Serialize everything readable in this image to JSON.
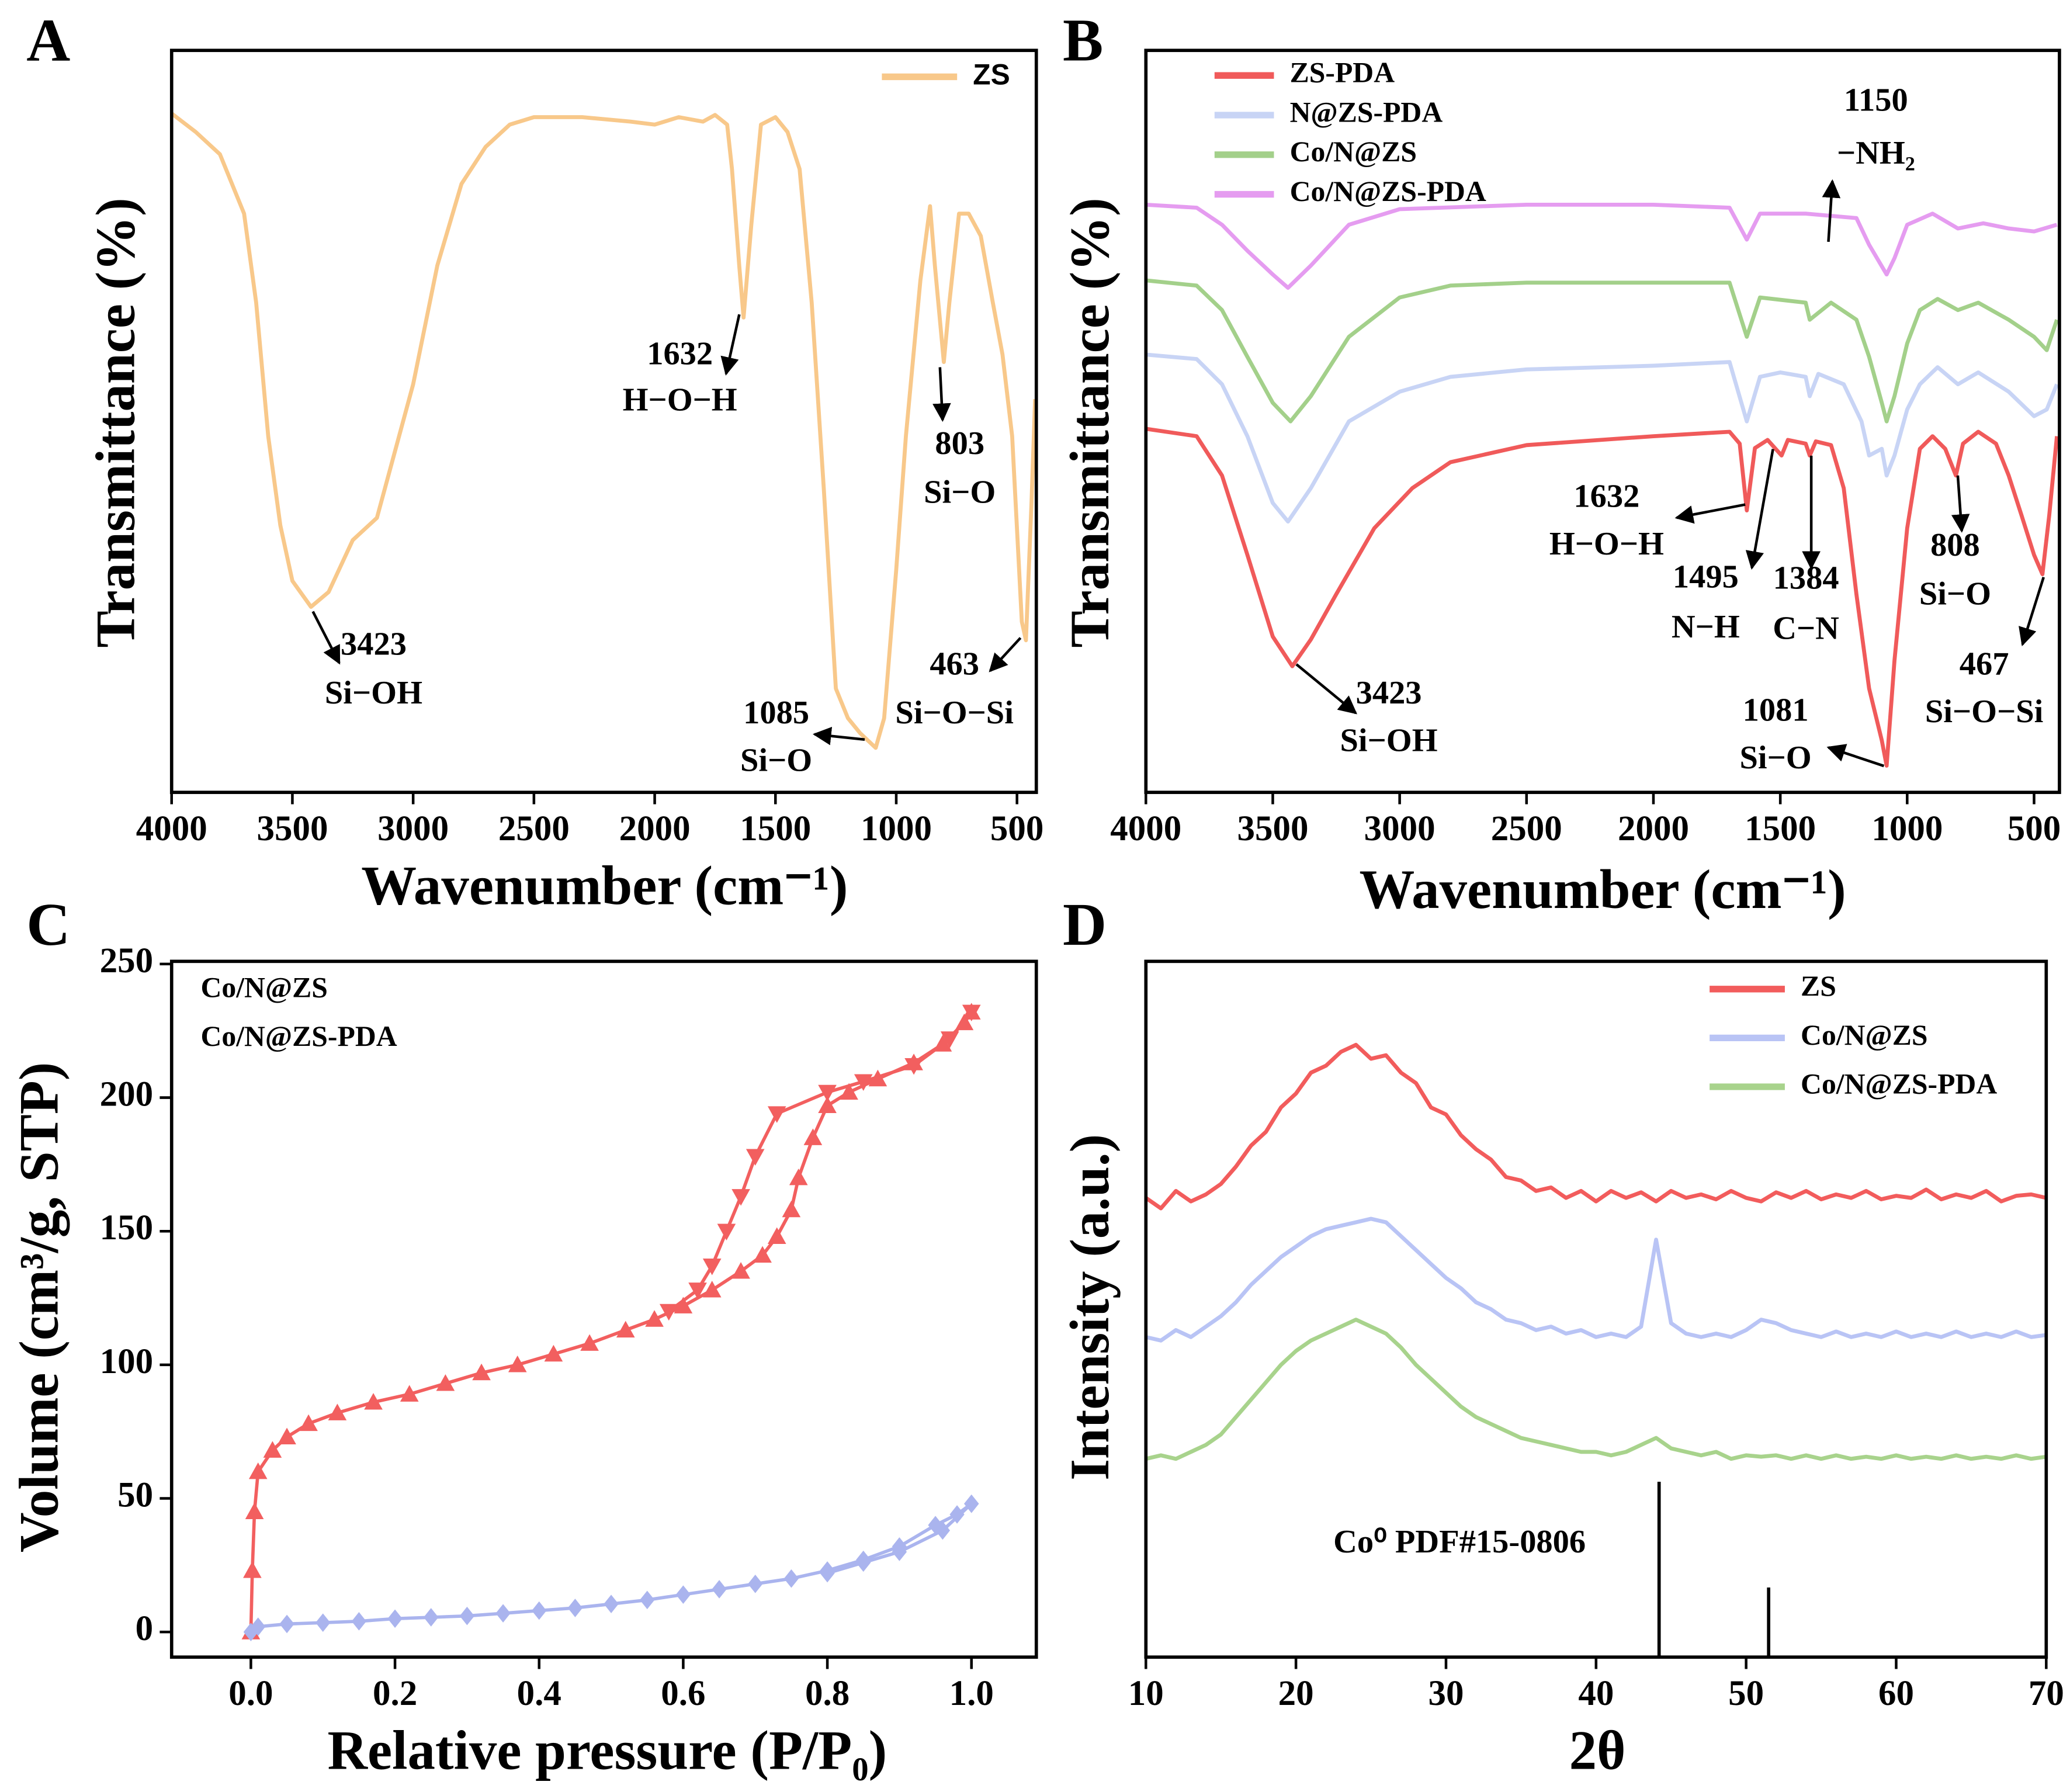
{
  "chart_data": [
    {
      "type": "line",
      "panel": "A",
      "xlabel": "Wavenumber (cm⁻¹)",
      "ylabel": "Transmittance (%)",
      "xlim": [
        4000,
        420
      ],
      "ylim": [
        0,
        100
      ],
      "xticks": [
        4000,
        3500,
        3000,
        2500,
        2000,
        1500,
        1000,
        500
      ],
      "legend": "upper right",
      "legend_lines": true,
      "series": [
        {
          "name": "ZS",
          "color": "#f8c88a",
          "x": [
            4000,
            3900,
            3800,
            3700,
            3650,
            3600,
            3550,
            3500,
            3423,
            3350,
            3250,
            3150,
            3000,
            2900,
            2800,
            2700,
            2600,
            2500,
            2300,
            2100,
            2000,
            1900,
            1800,
            1750,
            1700,
            1680,
            1650,
            1632,
            1600,
            1560,
            1500,
            1450,
            1400,
            1350,
            1300,
            1250,
            1200,
            1150,
            1085,
            1050,
            1000,
            960,
            900,
            860,
            840,
            803,
            780,
            740,
            700,
            650,
            600,
            560,
            520,
            480,
            463,
            440,
            425
          ],
          "values": [
            91.5,
            89,
            86,
            78,
            66,
            48,
            36,
            28.5,
            25,
            27,
            34,
            37,
            55,
            71,
            82,
            87,
            90,
            91,
            91,
            90.4,
            90,
            91,
            90.4,
            91.3,
            90,
            84,
            71,
            64,
            76.5,
            90,
            91,
            89,
            84,
            66,
            41,
            14,
            10,
            8,
            6,
            10,
            30,
            48,
            69,
            79,
            71,
            58,
            66,
            78,
            78,
            75,
            66,
            59,
            48,
            23,
            20.5,
            39,
            53
          ]
        }
      ],
      "annotations": [
        {
          "label": "3423",
          "text": "Si−OH"
        },
        {
          "label": "1632",
          "text": "H−O−H"
        },
        {
          "label": "803",
          "text": "Si−O"
        },
        {
          "label": "1085",
          "text": "Si−O"
        },
        {
          "label": "463",
          "text": "Si−O−Si"
        }
      ]
    },
    {
      "type": "line",
      "panel": "B",
      "xlabel": "Wavenumber (cm⁻¹)",
      "ylabel": "Transmittance (%)",
      "xlim": [
        4000,
        400
      ],
      "ylim": [
        0,
        100
      ],
      "xticks": [
        4000,
        3500,
        3000,
        2500,
        2000,
        1500,
        1000,
        500
      ],
      "legend": "upper left",
      "legend_lines": true,
      "series": [
        {
          "name": "ZS-PDA",
          "color": "#f05a5a",
          "x": [
            4000,
            3800,
            3700,
            3600,
            3500,
            3423,
            3350,
            3250,
            3100,
            2950,
            2800,
            2500,
            2000,
            1700,
            1660,
            1632,
            1600,
            1550,
            1495,
            1470,
            1400,
            1384,
            1360,
            1300,
            1250,
            1200,
            1150,
            1100,
            1081,
            1050,
            1000,
            950,
            900,
            850,
            808,
            780,
            720,
            650,
            600,
            550,
            500,
            467,
            440,
            410
          ],
          "values": [
            49,
            48,
            42.7,
            32,
            21,
            17,
            20.6,
            26.7,
            35.6,
            41,
            44.5,
            46.8,
            48,
            48.6,
            47,
            38,
            46.4,
            47.5,
            45.4,
            47.5,
            47,
            45.4,
            47.3,
            46.8,
            41,
            26.7,
            14,
            7,
            3.6,
            17.8,
            35.6,
            46.3,
            48,
            46.3,
            42.7,
            47,
            48.6,
            47,
            42.7,
            37.4,
            32,
            29.4,
            37.4,
            48
          ]
        },
        {
          "name": "N@ZS-PDA",
          "color": "#c8d4f5",
          "x": [
            4000,
            3800,
            3700,
            3600,
            3500,
            3440,
            3350,
            3200,
            3000,
            2800,
            2500,
            2000,
            1700,
            1632,
            1580,
            1500,
            1400,
            1384,
            1350,
            1250,
            1180,
            1150,
            1100,
            1081,
            1050,
            1000,
            950,
            880,
            800,
            720,
            600,
            500,
            450,
            410
          ],
          "values": [
            59,
            58.4,
            55,
            48,
            39,
            36.5,
            41,
            50,
            54,
            56,
            57,
            57.5,
            58,
            50,
            56,
            56.6,
            56,
            53.4,
            56.4,
            55,
            50,
            45.4,
            46.3,
            42.7,
            45.4,
            51.6,
            55,
            57.3,
            55,
            56.6,
            54,
            50.7,
            51.6,
            55
          ]
        },
        {
          "name": "Co/N@ZS",
          "color": "#a3d08a",
          "x": [
            4000,
            3800,
            3700,
            3600,
            3500,
            3430,
            3350,
            3200,
            3000,
            2800,
            2500,
            2000,
            1700,
            1632,
            1580,
            1400,
            1384,
            1300,
            1200,
            1150,
            1100,
            1081,
            1050,
            1000,
            950,
            880,
            800,
            720,
            600,
            500,
            450,
            410
          ],
          "values": [
            69,
            68.3,
            65,
            58.7,
            52.5,
            50,
            53.4,
            61.4,
            66.7,
            68.3,
            68.7,
            68.7,
            68.7,
            61.4,
            66.7,
            66,
            63.7,
            66,
            63.7,
            58.7,
            52.5,
            50,
            53.4,
            60.5,
            65,
            66.5,
            65,
            66,
            63.7,
            61.4,
            59.6,
            63.7
          ]
        },
        {
          "name": "Co/N@ZS-PDA",
          "color": "#e59cf0",
          "x": [
            4000,
            3800,
            3700,
            3600,
            3500,
            3440,
            3350,
            3200,
            3000,
            2500,
            2000,
            1700,
            1632,
            1580,
            1400,
            1200,
            1150,
            1081,
            1050,
            1000,
            900,
            800,
            700,
            600,
            500,
            410
          ],
          "values": [
            79.2,
            78.8,
            76.5,
            73,
            69.8,
            68,
            71,
            76.5,
            78.6,
            79.2,
            79.2,
            78.8,
            74.5,
            78,
            78,
            77.4,
            73.8,
            69.8,
            72,
            76.5,
            78,
            76,
            76.7,
            76,
            75.6,
            76.5
          ]
        }
      ],
      "annotations": [
        {
          "label": "1150",
          "text": "−NH₂"
        },
        {
          "label": "1632",
          "text": "H−O−H"
        },
        {
          "label": "1495",
          "text": "N−H"
        },
        {
          "label": "1384",
          "text": "C−N"
        },
        {
          "label": "808",
          "text": "Si−O"
        },
        {
          "label": "467",
          "text": "Si−O−Si"
        },
        {
          "label": "3423",
          "text": "Si−OH"
        },
        {
          "label": "1081",
          "text": "Si−O"
        }
      ]
    },
    {
      "type": "line",
      "panel": "C",
      "xlabel": "Relative pressure (P/P₀)",
      "ylabel": "Volume (cm³/g, STP)",
      "xlim": [
        -0.11,
        1.09
      ],
      "ylim": [
        -9.4,
        251
      ],
      "xticks": [
        {
          "value": 0,
          "label": "0.0"
        },
        {
          "value": 0.2,
          "label": "0.2"
        },
        {
          "value": 0.4,
          "label": "0.4"
        },
        {
          "value": 0.6,
          "label": "0.6"
        },
        {
          "value": 0.8,
          "label": "0.8"
        },
        {
          "value": 1,
          "label": "1.0"
        }
      ],
      "yticks": [
        0,
        50,
        100,
        150,
        200,
        250
      ],
      "legend": "upper left",
      "legend_lines": false,
      "series": [
        {
          "name": "Co/N@ZS",
          "color": "#f25f5f",
          "marker": "triangle",
          "x": [
            0,
            0.002,
            0.005,
            0.01,
            0.03,
            0.05,
            0.08,
            0.12,
            0.17,
            0.22,
            0.27,
            0.32,
            0.37,
            0.42,
            0.47,
            0.52,
            0.56,
            0.6,
            0.64,
            0.68,
            0.71,
            0.73,
            0.75,
            0.76,
            0.78,
            0.8,
            0.83,
            0.87,
            0.92,
            0.96,
            0.99,
            1.0
          ],
          "values": [
            0,
            23,
            45,
            60,
            68,
            73,
            78,
            82,
            86,
            89,
            93,
            97,
            100,
            104,
            108,
            113,
            117,
            122,
            128,
            135,
            141,
            148,
            158,
            170,
            185,
            197,
            202,
            207,
            213,
            220,
            228,
            232
          ],
          "desorption_x": [
            1.0,
            0.97,
            0.92,
            0.85,
            0.8,
            0.73,
            0.7,
            0.68,
            0.66,
            0.64,
            0.62,
            0.58
          ],
          "desorption_values": [
            232,
            222,
            212,
            206,
            202,
            194,
            178,
            163,
            150,
            137,
            128,
            120
          ]
        },
        {
          "name": "Co/N@ZS-PDA",
          "color": "#aab4ee",
          "marker": "diamond",
          "x": [
            0,
            0.01,
            0.05,
            0.1,
            0.15,
            0.2,
            0.25,
            0.3,
            0.35,
            0.4,
            0.45,
            0.5,
            0.55,
            0.6,
            0.65,
            0.7,
            0.75,
            0.8,
            0.85,
            0.9,
            0.95,
            0.98,
            1.0
          ],
          "values": [
            0,
            2,
            3,
            3.5,
            4,
            5,
            5.5,
            6,
            7,
            8,
            9,
            10.5,
            12,
            14,
            16,
            18,
            20,
            23,
            27,
            32,
            40,
            44,
            48
          ],
          "desorption_x": [
            1.0,
            0.96,
            0.9,
            0.85,
            0.8
          ],
          "desorption_values": [
            48,
            38,
            30,
            26,
            22
          ]
        }
      ]
    },
    {
      "type": "line",
      "panel": "D",
      "xlabel": "2θ",
      "ylabel": "Intensity (a.u.)",
      "xlim": [
        10,
        70
      ],
      "ylim": [
        0,
        100
      ],
      "xticks": [
        10,
        20,
        30,
        40,
        50,
        60,
        70
      ],
      "legend": "upper right",
      "legend_lines": true,
      "x": [
        10,
        11,
        12,
        13,
        14,
        15,
        16,
        17,
        18,
        19,
        20,
        21,
        22,
        23,
        24,
        25,
        26,
        27,
        28,
        29,
        30,
        31,
        32,
        33,
        34,
        35,
        36,
        37,
        38,
        39,
        40,
        41,
        42,
        43,
        44,
        45,
        46,
        47,
        48,
        49,
        50,
        51,
        52,
        53,
        54,
        55,
        56,
        57,
        58,
        59,
        60,
        61,
        62,
        63,
        64,
        65,
        66,
        67,
        68,
        69,
        70
      ],
      "series": [
        {
          "name": "ZS",
          "color": "#f25c5c",
          "values": [
            66,
            64.5,
            67,
            65.5,
            66.5,
            68,
            70.5,
            73.5,
            75.5,
            79,
            81,
            84,
            85,
            87,
            88,
            86,
            86.5,
            84,
            82.5,
            79,
            78,
            75,
            73,
            71.5,
            69,
            68.5,
            67,
            67.5,
            66,
            67,
            65.5,
            67,
            66,
            66.8,
            65.5,
            67,
            66,
            66.5,
            65.8,
            67,
            66,
            65.5,
            66.8,
            66,
            67,
            65.8,
            66.5,
            66,
            67,
            65.8,
            66.3,
            66,
            67.2,
            65.8,
            66.5,
            66,
            67,
            65.5,
            66.3,
            66.5,
            66
          ]
        },
        {
          "name": "Co/N@ZS",
          "color": "#b9c4f5",
          "values": [
            46,
            45.5,
            47,
            46,
            47.5,
            49,
            51,
            53.5,
            55.5,
            57.5,
            59,
            60.5,
            61.5,
            62,
            62.5,
            63,
            62.5,
            60.5,
            58.5,
            56.5,
            54.5,
            53,
            51,
            50,
            48.5,
            48,
            47,
            47.5,
            46.5,
            47,
            46,
            46.5,
            46,
            47.5,
            60,
            48,
            46.5,
            46,
            46.5,
            46,
            47,
            48.5,
            48,
            47,
            46.5,
            46,
            46.8,
            46,
            46.5,
            46,
            46.8,
            46,
            46.5,
            46,
            46.8,
            46,
            46.5,
            46,
            46.8,
            46,
            46.3
          ]
        },
        {
          "name": "Co/N@ZS-PDA",
          "color": "#a8d38c",
          "values": [
            28.5,
            29,
            28.5,
            29.5,
            30.5,
            32,
            34.5,
            37,
            39.5,
            42,
            44,
            45.5,
            46.5,
            47.5,
            48.5,
            47.5,
            46.5,
            44.5,
            42,
            40,
            38,
            36,
            34.5,
            33.5,
            32.5,
            31.5,
            31,
            30.5,
            30,
            29.5,
            29.5,
            29,
            29.5,
            30.5,
            31.5,
            30,
            29.5,
            29,
            29.5,
            28.5,
            29,
            28.8,
            29,
            28.5,
            29,
            28.5,
            29,
            28.5,
            28.8,
            28.5,
            29,
            28.5,
            28.8,
            28.5,
            29,
            28.5,
            28.8,
            28.5,
            29,
            28.5,
            28.8
          ]
        }
      ],
      "reference": {
        "label": "Co⁰  PDF#15-0806",
        "color": "#000000",
        "x": [
          44.2,
          51.5
        ],
        "values": [
          25.2,
          10
        ]
      }
    }
  ]
}
